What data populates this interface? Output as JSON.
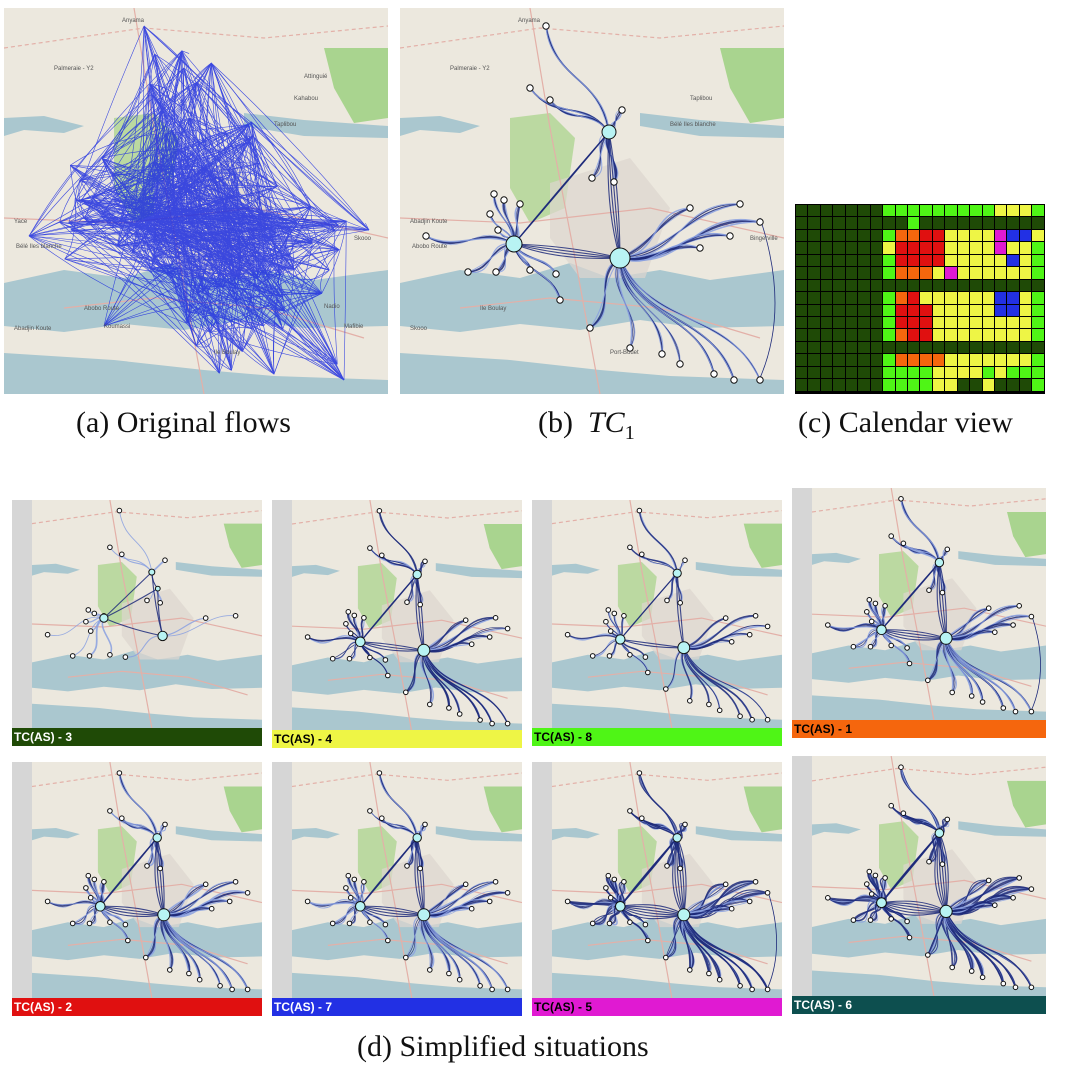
{
  "captions": {
    "a": "(a)  Original flows",
    "b_prefix": "(b)  ",
    "b_italic": "TC",
    "b_sub": "1",
    "c": "(c)  Calendar view",
    "d": "(d)  Simplified situations"
  },
  "map_labels": {
    "a": [
      "Anyama",
      "Palmeraie - Y2",
      "Kahabou",
      "Taplibou",
      "Yace",
      "Bélé Iles blanche",
      "Abobo Route",
      "Abadjin Koute",
      "Ile Boulay",
      "Skooo",
      "Nadio",
      "Koumassi",
      "Mafibie",
      "Attinguié"
    ],
    "b": [
      "Anyama",
      "Palmeraie - Y2",
      "Taplibou",
      "Bélé Iles blanche",
      "Abadjin Koute",
      "Abobo Route",
      "Ile Boulay",
      "Skooo",
      "Port-Bouet",
      "Bingerville"
    ]
  },
  "calendar": {
    "colors": {
      "dg": "#1f4a06",
      "lg": "#4ff516",
      "ye": "#eef545",
      "or": "#f5660d",
      "re": "#e01010",
      "bl": "#2230e4",
      "mg": "#e01ad2"
    },
    "rows": [
      [
        "dg",
        "dg",
        "dg",
        "dg",
        "dg",
        "dg",
        "dg",
        "lg",
        "lg",
        "lg",
        "lg",
        "lg",
        "lg",
        "lg",
        "lg",
        "lg",
        "ye",
        "ye",
        "ye",
        "lg"
      ],
      [
        "dg",
        "dg",
        "dg",
        "dg",
        "dg",
        "dg",
        "dg",
        "dg",
        "dg",
        "lg",
        "dg",
        "dg",
        "dg",
        "dg",
        "dg",
        "dg",
        "dg",
        "dg",
        "dg",
        "dg"
      ],
      [
        "dg",
        "dg",
        "dg",
        "dg",
        "dg",
        "dg",
        "dg",
        "lg",
        "or",
        "or",
        "re",
        "re",
        "ye",
        "ye",
        "ye",
        "ye",
        "mg",
        "bl",
        "bl",
        "ye"
      ],
      [
        "dg",
        "dg",
        "dg",
        "dg",
        "dg",
        "dg",
        "dg",
        "ye",
        "re",
        "re",
        "re",
        "re",
        "ye",
        "ye",
        "ye",
        "ye",
        "mg",
        "ye",
        "ye",
        "lg"
      ],
      [
        "dg",
        "dg",
        "dg",
        "dg",
        "dg",
        "dg",
        "dg",
        "lg",
        "re",
        "re",
        "re",
        "re",
        "ye",
        "ye",
        "ye",
        "ye",
        "ye",
        "bl",
        "ye",
        "lg"
      ],
      [
        "dg",
        "dg",
        "dg",
        "dg",
        "dg",
        "dg",
        "dg",
        "lg",
        "or",
        "or",
        "or",
        "ye",
        "mg",
        "ye",
        "ye",
        "ye",
        "ye",
        "ye",
        "ye",
        "lg"
      ],
      [
        "dg",
        "dg",
        "dg",
        "dg",
        "dg",
        "dg",
        "dg",
        "dg",
        "dg",
        "dg",
        "dg",
        "dg",
        "dg",
        "dg",
        "dg",
        "dg",
        "dg",
        "dg",
        "dg",
        "dg"
      ],
      [
        "dg",
        "dg",
        "dg",
        "dg",
        "dg",
        "dg",
        "dg",
        "lg",
        "or",
        "re",
        "ye",
        "ye",
        "ye",
        "ye",
        "ye",
        "ye",
        "bl",
        "bl",
        "ye",
        "lg"
      ],
      [
        "dg",
        "dg",
        "dg",
        "dg",
        "dg",
        "dg",
        "dg",
        "lg",
        "re",
        "re",
        "re",
        "ye",
        "ye",
        "ye",
        "ye",
        "ye",
        "bl",
        "bl",
        "ye",
        "lg"
      ],
      [
        "dg",
        "dg",
        "dg",
        "dg",
        "dg",
        "dg",
        "dg",
        "lg",
        "re",
        "re",
        "re",
        "ye",
        "ye",
        "ye",
        "ye",
        "ye",
        "ye",
        "ye",
        "ye",
        "lg"
      ],
      [
        "dg",
        "dg",
        "dg",
        "dg",
        "dg",
        "dg",
        "dg",
        "lg",
        "or",
        "re",
        "re",
        "ye",
        "ye",
        "ye",
        "ye",
        "ye",
        "ye",
        "ye",
        "ye",
        "lg"
      ],
      [
        "dg",
        "dg",
        "dg",
        "dg",
        "dg",
        "dg",
        "dg",
        "dg",
        "dg",
        "dg",
        "dg",
        "dg",
        "dg",
        "dg",
        "dg",
        "dg",
        "dg",
        "dg",
        "dg",
        "dg"
      ],
      [
        "dg",
        "dg",
        "dg",
        "dg",
        "dg",
        "dg",
        "dg",
        "lg",
        "or",
        "or",
        "or",
        "or",
        "ye",
        "ye",
        "ye",
        "ye",
        "ye",
        "ye",
        "ye",
        "lg"
      ],
      [
        "dg",
        "dg",
        "dg",
        "dg",
        "dg",
        "dg",
        "dg",
        "lg",
        "lg",
        "lg",
        "lg",
        "ye",
        "ye",
        "ye",
        "ye",
        "lg",
        "ye",
        "lg",
        "lg",
        "lg"
      ],
      [
        "dg",
        "dg",
        "dg",
        "dg",
        "dg",
        "dg",
        "dg",
        "lg",
        "lg",
        "lg",
        "lg",
        "ye",
        "ye",
        "dg",
        "dg",
        "ye",
        "dg",
        "dg",
        "dg",
        "lg"
      ]
    ]
  },
  "situations": [
    {
      "id": "tc3",
      "label": "TC(AS) - 3",
      "bg": "#1f4a06",
      "fg": "#ffffff"
    },
    {
      "id": "tc4",
      "label": "TC(AS) - 4",
      "bg": "#eef545",
      "fg": "#000000"
    },
    {
      "id": "tc8",
      "label": "TC(AS) - 8",
      "bg": "#4ff516",
      "fg": "#000000"
    },
    {
      "id": "tc1",
      "label": "TC(AS) - 1",
      "bg": "#f5660d",
      "fg": "#000000"
    },
    {
      "id": "tc2",
      "label": "TC(AS) - 2",
      "bg": "#e01010",
      "fg": "#ffffff"
    },
    {
      "id": "tc7",
      "label": "TC(AS) - 7",
      "bg": "#2230e4",
      "fg": "#ffffff"
    },
    {
      "id": "tc5",
      "label": "TC(AS) - 5",
      "bg": "#e01ad2",
      "fg": "#000000"
    },
    {
      "id": "tc6",
      "label": "TC(AS) - 6",
      "bg": "#0d4f4f",
      "fg": "#ffffff"
    }
  ]
}
